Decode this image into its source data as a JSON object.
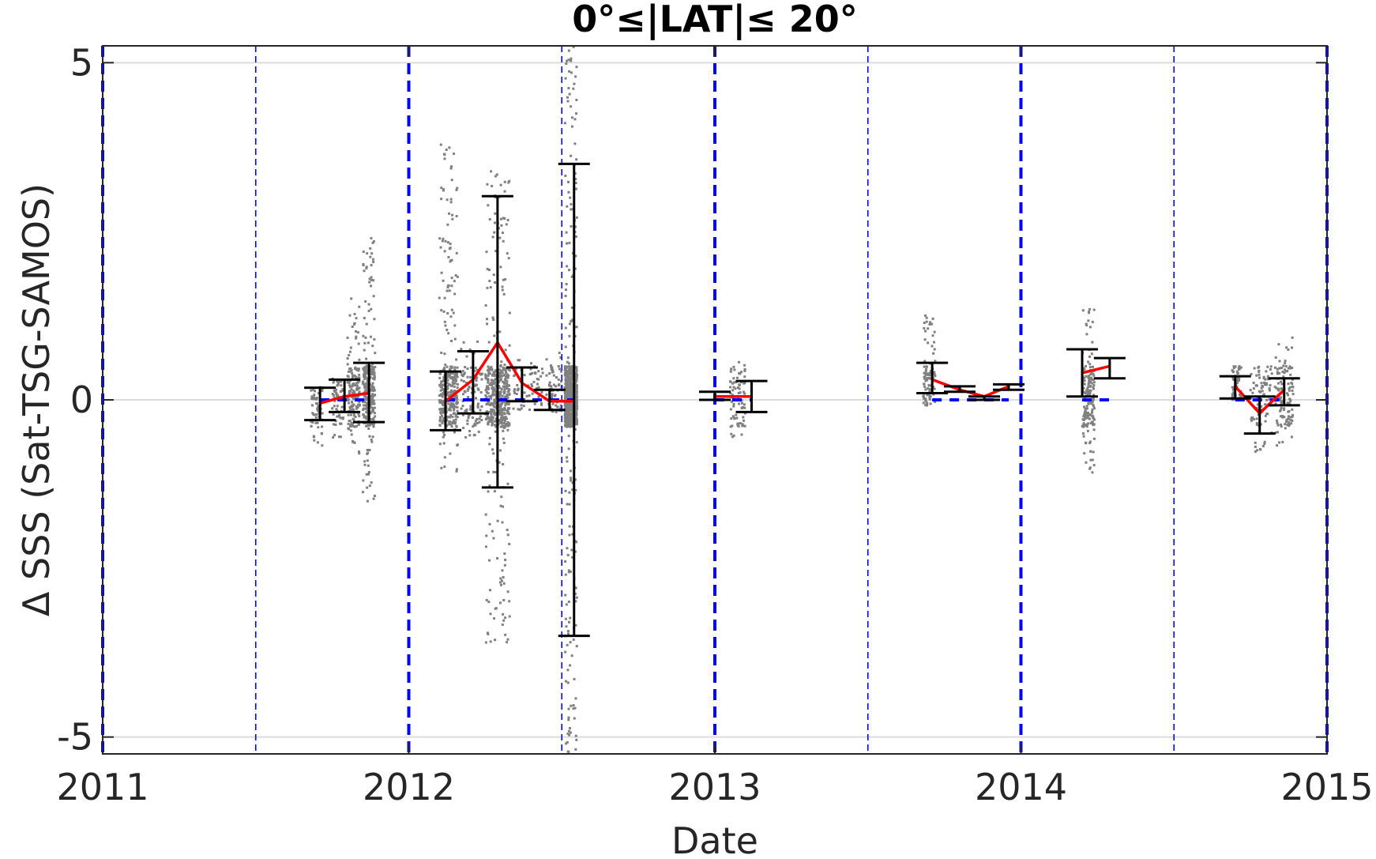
{
  "chart_data": {
    "type": "scatter",
    "title": "0°≤|LAT|≤ 20°",
    "xlabel": "Date",
    "ylabel": "Δ SSS (Sat-TSG-SAMOS)",
    "xlim": [
      2011.0,
      2015.0
    ],
    "ylim": [
      -5.25,
      5.25
    ],
    "xticks": [
      2011,
      2012,
      2013,
      2014,
      2015
    ],
    "xtick_labels": [
      "2011",
      "2012",
      "2013",
      "2014",
      "2015"
    ],
    "yticks": [
      -5,
      0,
      5
    ],
    "ytick_labels": [
      "-5",
      "0",
      "5"
    ],
    "grid": "horizontal",
    "year_lines": [
      2011.0,
      2012.0,
      2013.0,
      2014.0,
      2015.0
    ],
    "halfyear_lines": [
      2011.5,
      2012.5,
      2013.5,
      2014.5
    ],
    "colors": {
      "scatter": "#808080",
      "mean": "#ff0000",
      "median": "#0000ff",
      "errorbar": "#000000",
      "year_line": "#0000ff",
      "grid": "#dcdcdc"
    },
    "scatter_clusters": [
      {
        "x": [
          2011.68,
          2011.72
        ],
        "ymin": -0.7,
        "ymax": 0.2
      },
      {
        "x": [
          2011.75,
          2011.79
        ],
        "ymin": -0.6,
        "ymax": 0.35
      },
      {
        "x": [
          2011.8,
          2011.84
        ],
        "ymin": -0.8,
        "ymax": 1.6
      },
      {
        "x": [
          2011.85,
          2011.89
        ],
        "ymin": -1.55,
        "ymax": 2.4
      },
      {
        "x": [
          2012.1,
          2012.16
        ],
        "ymin": -1.1,
        "ymax": 3.8
      },
      {
        "x": [
          2012.17,
          2012.24
        ],
        "ymin": -0.6,
        "ymax": 0.9
      },
      {
        "x": [
          2012.25,
          2012.33
        ],
        "ymin": -3.6,
        "ymax": 3.4
      },
      {
        "x": [
          2012.34,
          2012.44
        ],
        "ymin": -0.2,
        "ymax": 0.6
      },
      {
        "x": [
          2012.45,
          2012.5
        ],
        "ymin": -0.2,
        "ymax": 0.7
      },
      {
        "x": [
          2012.51,
          2012.55
        ],
        "ymin": -5.25,
        "ymax": 5.25
      },
      {
        "x": [
          2013.05,
          2013.1
        ],
        "ymin": -0.6,
        "ymax": 0.6
      },
      {
        "x": [
          2013.68,
          2013.72
        ],
        "ymin": -0.1,
        "ymax": 1.3
      },
      {
        "x": [
          2014.2,
          2014.24
        ],
        "ymin": -1.1,
        "ymax": 1.4
      },
      {
        "x": [
          2014.69,
          2014.72
        ],
        "ymin": 0.0,
        "ymax": 0.5
      },
      {
        "x": [
          2014.75,
          2014.82
        ],
        "ymin": -0.8,
        "ymax": 0.5
      },
      {
        "x": [
          2014.83,
          2014.89
        ],
        "ymin": -0.7,
        "ymax": 1.0
      }
    ],
    "series": [
      {
        "name": "",
        "style": "mean",
        "segments": [
          {
            "x": [
              2011.71,
              2011.79,
              2011.87
            ],
            "y": [
              -0.05,
              0.05,
              0.1
            ]
          },
          {
            "x": [
              2012.12,
              2012.21,
              2012.29,
              2012.37,
              2012.46,
              2012.54
            ],
            "y": [
              -0.02,
              0.3,
              0.85,
              0.25,
              -0.02,
              -0.02
            ]
          },
          {
            "x": [
              2013.0,
              2013.12
            ],
            "y": [
              0.05,
              0.05
            ]
          },
          {
            "x": [
              2013.71,
              2013.8,
              2013.88,
              2013.96
            ],
            "y": [
              0.3,
              0.15,
              0.05,
              0.2
            ]
          },
          {
            "x": [
              2014.2,
              2014.29
            ],
            "y": [
              0.4,
              0.5
            ]
          },
          {
            "x": [
              2014.7,
              2014.78,
              2014.86
            ],
            "y": [
              0.2,
              -0.2,
              0.15
            ]
          }
        ]
      },
      {
        "name": "",
        "style": "median",
        "segments": [
          {
            "x": [
              2011.71,
              2011.79,
              2011.87
            ],
            "y": [
              0.0,
              0.0,
              0.0
            ]
          },
          {
            "x": [
              2012.12,
              2012.21,
              2012.29,
              2012.37,
              2012.46,
              2012.54
            ],
            "y": [
              0.0,
              0.0,
              0.0,
              0.0,
              0.0,
              0.0
            ]
          },
          {
            "x": [
              2013.0,
              2013.12
            ],
            "y": [
              0.0,
              0.0
            ]
          },
          {
            "x": [
              2013.71,
              2013.8,
              2013.88,
              2013.96
            ],
            "y": [
              0.0,
              0.0,
              0.0,
              0.0
            ]
          },
          {
            "x": [
              2014.2,
              2014.29
            ],
            "y": [
              0.0,
              0.0
            ]
          },
          {
            "x": [
              2014.7,
              2014.78,
              2014.86
            ],
            "y": [
              0.0,
              0.0,
              0.0
            ]
          }
        ]
      }
    ],
    "error_bars": [
      {
        "x": 2011.71,
        "low": -0.3,
        "high": 0.18
      },
      {
        "x": 2011.79,
        "low": -0.18,
        "high": 0.3
      },
      {
        "x": 2011.87,
        "low": -0.33,
        "high": 0.55
      },
      {
        "x": 2012.12,
        "low": -0.45,
        "high": 0.42
      },
      {
        "x": 2012.21,
        "low": -0.2,
        "high": 0.72
      },
      {
        "x": 2012.29,
        "low": -1.3,
        "high": 3.02
      },
      {
        "x": 2012.37,
        "low": -0.02,
        "high": 0.48
      },
      {
        "x": 2012.46,
        "low": -0.15,
        "high": 0.15
      },
      {
        "x": 2012.54,
        "low": -3.5,
        "high": 3.5
      },
      {
        "x": 2013.0,
        "low": 0.0,
        "high": 0.12
      },
      {
        "x": 2013.12,
        "low": -0.18,
        "high": 0.28
      },
      {
        "x": 2013.71,
        "low": 0.1,
        "high": 0.55
      },
      {
        "x": 2013.8,
        "low": 0.12,
        "high": 0.2
      },
      {
        "x": 2013.88,
        "low": 0.0,
        "high": 0.05
      },
      {
        "x": 2013.96,
        "low": 0.15,
        "high": 0.23
      },
      {
        "x": 2014.2,
        "low": 0.05,
        "high": 0.75
      },
      {
        "x": 2014.29,
        "low": 0.32,
        "high": 0.62
      },
      {
        "x": 2014.7,
        "low": 0.02,
        "high": 0.35
      },
      {
        "x": 2014.78,
        "low": -0.5,
        "high": 0.05
      },
      {
        "x": 2014.86,
        "low": -0.08,
        "high": 0.32
      }
    ]
  }
}
